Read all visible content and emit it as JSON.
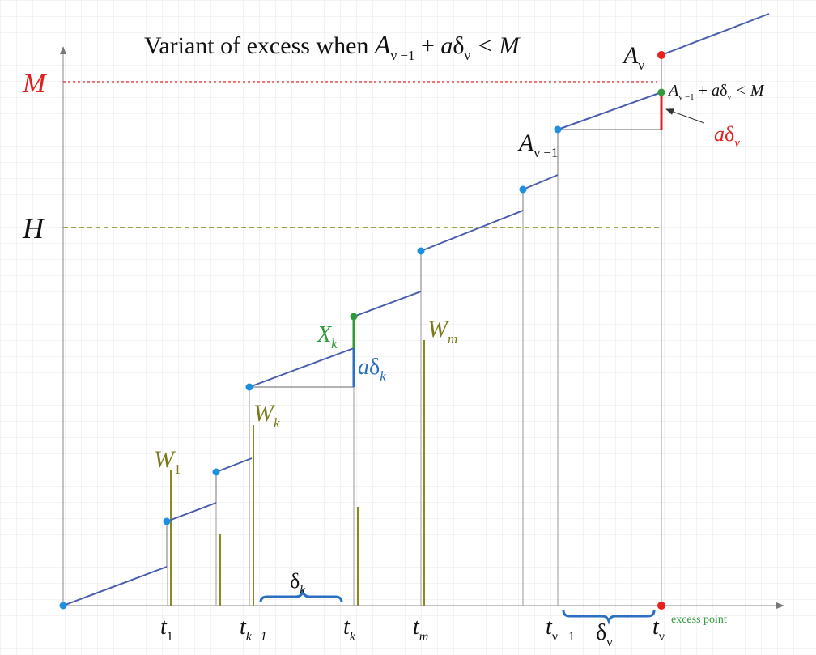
{
  "title": {
    "prefix": "Variant of excess when ",
    "A": "A",
    "sub": "ν −1",
    "plus": " + ",
    "a": "a",
    "delta": "δ",
    "dsub": "ν",
    "rel": " < M"
  },
  "levels": {
    "M": "M",
    "H": "H",
    "M_color": "#e02020",
    "H_color": "#7a7a1a"
  },
  "point_labels": {
    "A_nu": {
      "main": "A",
      "sub": "ν"
    },
    "A_nu_minus_1": {
      "main": "A",
      "sub": "ν −1"
    },
    "Xk": {
      "main": "X",
      "sub": "k"
    },
    "Wm": {
      "main": "W",
      "sub": "m"
    },
    "Wk": {
      "main": "W",
      "sub": "k"
    },
    "W1": {
      "main": "W",
      "sub": "1"
    }
  },
  "condition_label": {
    "A": "A",
    "sub": "ν −1",
    "plus": " + ",
    "a": "a",
    "delta": "δ",
    "dsub": "ν",
    "rel": " < M"
  },
  "a_delta_nu": {
    "a": "a",
    "delta": "δ",
    "sub": "ν"
  },
  "a_delta_k": {
    "a": "a",
    "delta": "δ",
    "sub": "k"
  },
  "brace_labels": {
    "delta_k": {
      "main": "δ",
      "sub": "k"
    },
    "delta_nu": {
      "main": "δ",
      "sub": "ν"
    }
  },
  "time_labels": [
    {
      "main": "t",
      "sub": "1"
    },
    {
      "main": "t",
      "sub": "k−1"
    },
    {
      "main": "t",
      "sub": "k"
    },
    {
      "main": "t",
      "sub": "m"
    },
    {
      "main": "t",
      "sub": "ν −1"
    },
    {
      "main": "t",
      "sub": "ν"
    }
  ],
  "excess_point": "excess point",
  "colors": {
    "process": "#4a5dae",
    "jump_point": "#1e90e0",
    "excess_dot": "#e82020",
    "green_dot": "#2f9a3a",
    "gold_bar": "#8a8a20",
    "grid": "#e6e6e6",
    "axis": "#777777",
    "jump_line": "#b0b0b0",
    "ad_k": "#2a6fc0",
    "ad_nu": "#e02020",
    "Xk": "#2f9a3a",
    "W_label": "#7a7a1a",
    "excess_text": "#2f9a3a"
  }
}
